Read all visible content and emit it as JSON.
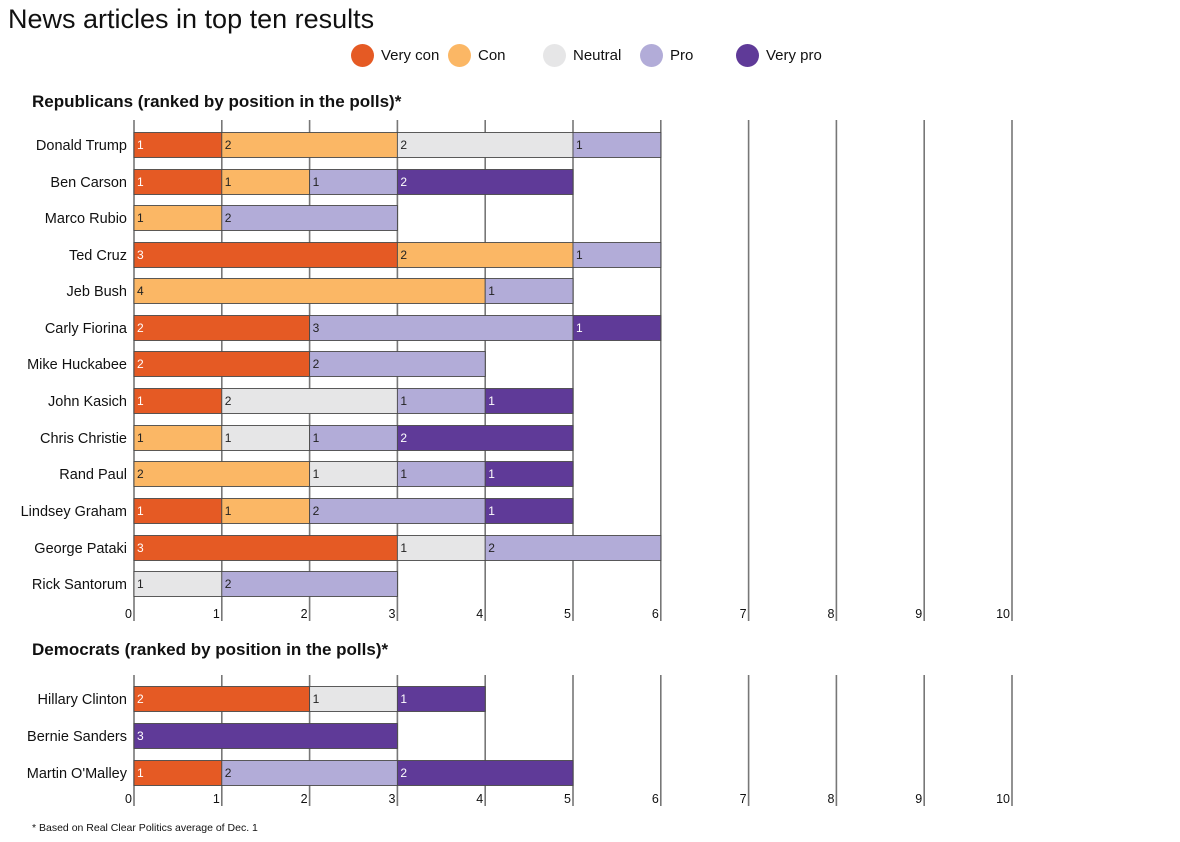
{
  "chart_data": {
    "type": "bar",
    "stacked": true,
    "orientation": "horizontal",
    "title": "News articles in top ten results",
    "legend": {
      "placement": "top-center",
      "entries": [
        {
          "key": "very_con",
          "label": "Very con",
          "color": "#e55a24"
        },
        {
          "key": "con",
          "label": "Con",
          "color": "#fbb765"
        },
        {
          "key": "neutral",
          "label": "Neutral",
          "color": "#e6e6e7"
        },
        {
          "key": "pro",
          "label": "Pro",
          "color": "#b2acd8"
        },
        {
          "key": "very_pro",
          "label": "Very pro",
          "color": "#5f3a98"
        }
      ]
    },
    "xlim": [
      0,
      10
    ],
    "ticks": [
      "0",
      "1",
      "2",
      "3",
      "4",
      "5",
      "6",
      "7",
      "8",
      "9",
      "10"
    ],
    "footnote": "* Based on Real Clear Politics average of Dec. 1",
    "panels": [
      {
        "title": "Republicans (ranked by position in the polls)*",
        "candidates": [
          {
            "name": "Donald Trump",
            "segments": [
              {
                "cat": "very_con",
                "value": 1
              },
              {
                "cat": "con",
                "value": 2
              },
              {
                "cat": "neutral",
                "value": 2
              },
              {
                "cat": "pro",
                "value": 1
              }
            ]
          },
          {
            "name": "Ben Carson",
            "segments": [
              {
                "cat": "very_con",
                "value": 1
              },
              {
                "cat": "con",
                "value": 1
              },
              {
                "cat": "pro",
                "value": 1
              },
              {
                "cat": "very_pro",
                "value": 2
              }
            ]
          },
          {
            "name": "Marco Rubio",
            "segments": [
              {
                "cat": "con",
                "value": 1
              },
              {
                "cat": "pro",
                "value": 2
              }
            ]
          },
          {
            "name": "Ted Cruz",
            "segments": [
              {
                "cat": "very_con",
                "value": 3
              },
              {
                "cat": "con",
                "value": 2
              },
              {
                "cat": "pro",
                "value": 1
              }
            ]
          },
          {
            "name": "Jeb Bush",
            "segments": [
              {
                "cat": "con",
                "value": 4
              },
              {
                "cat": "pro",
                "value": 1
              }
            ]
          },
          {
            "name": "Carly Fiorina",
            "segments": [
              {
                "cat": "very_con",
                "value": 2
              },
              {
                "cat": "pro",
                "value": 3
              },
              {
                "cat": "very_pro",
                "value": 1
              }
            ]
          },
          {
            "name": "Mike Huckabee",
            "segments": [
              {
                "cat": "very_con",
                "value": 2
              },
              {
                "cat": "pro",
                "value": 2
              }
            ]
          },
          {
            "name": "John Kasich",
            "segments": [
              {
                "cat": "very_con",
                "value": 1
              },
              {
                "cat": "neutral",
                "value": 2
              },
              {
                "cat": "pro",
                "value": 1
              },
              {
                "cat": "very_pro",
                "value": 1
              }
            ]
          },
          {
            "name": "Chris Christie",
            "segments": [
              {
                "cat": "con",
                "value": 1
              },
              {
                "cat": "neutral",
                "value": 1
              },
              {
                "cat": "pro",
                "value": 1
              },
              {
                "cat": "very_pro",
                "value": 2
              }
            ]
          },
          {
            "name": "Rand Paul",
            "segments": [
              {
                "cat": "con",
                "value": 2
              },
              {
                "cat": "neutral",
                "value": 1
              },
              {
                "cat": "pro",
                "value": 1
              },
              {
                "cat": "very_pro",
                "value": 1
              }
            ]
          },
          {
            "name": "Lindsey Graham",
            "segments": [
              {
                "cat": "very_con",
                "value": 1
              },
              {
                "cat": "con",
                "value": 1
              },
              {
                "cat": "pro",
                "value": 2
              },
              {
                "cat": "very_pro",
                "value": 1
              }
            ]
          },
          {
            "name": "George Pataki",
            "segments": [
              {
                "cat": "very_con",
                "value": 3
              },
              {
                "cat": "neutral",
                "value": 1
              },
              {
                "cat": "pro",
                "value": 2
              }
            ]
          },
          {
            "name": "Rick Santorum",
            "segments": [
              {
                "cat": "neutral",
                "value": 1
              },
              {
                "cat": "pro",
                "value": 2
              }
            ]
          }
        ]
      },
      {
        "title": "Democrats (ranked by position in the polls)*",
        "candidates": [
          {
            "name": "Hillary Clinton",
            "segments": [
              {
                "cat": "very_con",
                "value": 2
              },
              {
                "cat": "neutral",
                "value": 1
              },
              {
                "cat": "very_pro",
                "value": 1
              }
            ]
          },
          {
            "name": "Bernie Sanders",
            "segments": [
              {
                "cat": "very_pro",
                "value": 3
              }
            ]
          },
          {
            "name": "Martin O'Malley",
            "segments": [
              {
                "cat": "very_con",
                "value": 1
              },
              {
                "cat": "pro",
                "value": 2
              },
              {
                "cat": "very_pro",
                "value": 2
              }
            ]
          }
        ]
      }
    ]
  }
}
